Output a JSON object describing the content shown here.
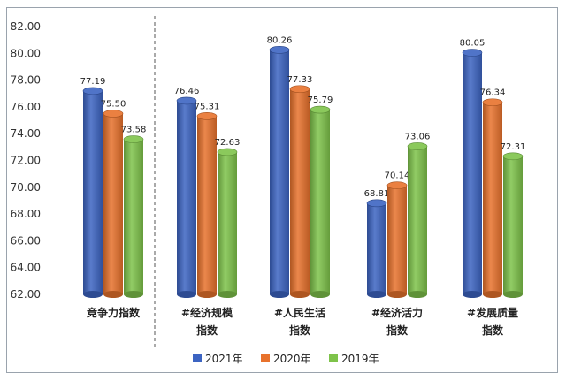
{
  "chart_data": {
    "type": "bar",
    "categories": [
      [
        "竞争力指数"
      ],
      [
        "#经济规模",
        "指数"
      ],
      [
        "#人民生活",
        "指数"
      ],
      [
        "#经济活力",
        "指数"
      ],
      [
        "#发展质量",
        "指数"
      ]
    ],
    "series": [
      {
        "name": "2021年",
        "color": "#3c64c2",
        "values": [
          77.19,
          76.46,
          80.26,
          68.81,
          80.05
        ]
      },
      {
        "name": "2020年",
        "color": "#e8722c",
        "values": [
          75.5,
          75.31,
          77.33,
          70.14,
          76.34
        ]
      },
      {
        "name": "2019年",
        "color": "#7ec34a",
        "values": [
          73.58,
          72.63,
          75.79,
          73.06,
          72.31
        ]
      }
    ],
    "ylim": [
      62,
      82
    ],
    "yticks": [
      "62.00",
      "64.00",
      "66.00",
      "68.00",
      "70.00",
      "72.00",
      "74.00",
      "76.00",
      "78.00",
      "80.00",
      "82.00"
    ],
    "legend_position": "bottom",
    "grid": false,
    "separator_after_category": 0,
    "title": "",
    "xlabel": "",
    "ylabel": ""
  }
}
